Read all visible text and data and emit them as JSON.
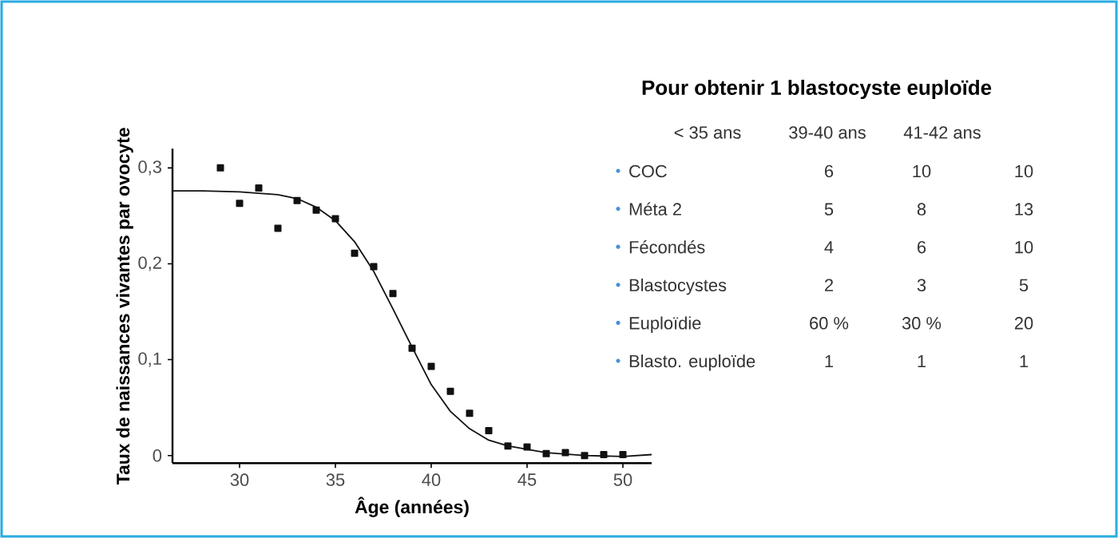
{
  "chart_data": [
    {
      "type": "scatter",
      "xlabel": "Âge (années)",
      "ylabel": "Taux de naissances vivantes par ovocyte",
      "xlim": [
        26.5,
        51.5
      ],
      "ylim": [
        -0.008,
        0.32
      ],
      "xticks": [
        30,
        35,
        40,
        45,
        50
      ],
      "yticks": [
        {
          "value": 0,
          "label": "0"
        },
        {
          "value": 0.1,
          "label": "0,1"
        },
        {
          "value": 0.2,
          "label": "0,2"
        },
        {
          "value": 0.3,
          "label": "0,3"
        }
      ],
      "grid": false,
      "series": [
        {
          "type": "scatter",
          "marker": "square",
          "color": "#111111",
          "x": [
            29,
            30,
            31,
            32,
            33,
            34,
            35,
            36,
            37,
            38,
            39,
            40,
            41,
            42,
            43,
            44,
            45,
            46,
            47,
            48,
            49,
            50
          ],
          "values": [
            0.3,
            0.263,
            0.279,
            0.237,
            0.266,
            0.256,
            0.247,
            0.211,
            0.197,
            0.169,
            0.112,
            0.093,
            0.067,
            0.044,
            0.026,
            0.01,
            0.009,
            0.002,
            0.003,
            0.0,
            0.001,
            0.001
          ]
        },
        {
          "type": "line",
          "marker": "none",
          "line_style": "solid",
          "color": "#111111",
          "x": [
            26.5,
            28,
            30,
            32,
            33,
            34,
            35,
            36,
            37,
            38,
            39,
            40,
            41,
            42,
            43,
            44,
            46,
            48,
            50,
            51.5
          ],
          "values": [
            0.276,
            0.276,
            0.275,
            0.272,
            0.268,
            0.259,
            0.245,
            0.223,
            0.192,
            0.153,
            0.113,
            0.074,
            0.046,
            0.028,
            0.016,
            0.01,
            0.003,
            0.0,
            -0.001,
            0.001
          ]
        }
      ]
    },
    {
      "type": "other",
      "title": "Pour obtenir 1 blastocyste euploïde",
      "categories": [
        "< 35 ans",
        "39-40 ans",
        "41-42 ans"
      ],
      "y_categories": [
        "COC",
        "Méta 2",
        "Fécondés",
        "Blastocystes",
        "Euploïdie",
        "Blasto. euploïde"
      ],
      "cell_labels": [
        [
          "6",
          "10",
          "10"
        ],
        [
          "5",
          "8",
          "13"
        ],
        [
          "4",
          "6",
          "10"
        ],
        [
          "2",
          "3",
          "5"
        ],
        [
          "60 %",
          "30 %",
          "20"
        ],
        [
          "1",
          "1",
          "1"
        ]
      ]
    }
  ]
}
